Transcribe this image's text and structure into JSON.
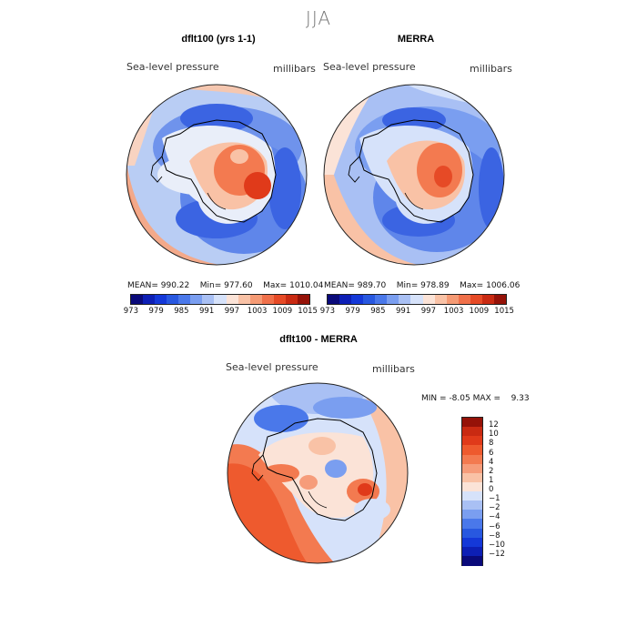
{
  "title": "JJA",
  "panels": [
    {
      "name": "dflt100 (yrs 1-1)",
      "variable": "Sea-level pressure",
      "units": "millibars",
      "stats": {
        "mean": "990.22",
        "min": "977.60",
        "max": "1010.04"
      }
    },
    {
      "name": "MERRA",
      "variable": "Sea-level pressure",
      "units": "millibars",
      "stats": {
        "mean": "989.70",
        "min": "978.89",
        "max": "1006.06"
      }
    }
  ],
  "diff_panel": {
    "name": "dflt100 - MERRA",
    "variable": "Sea-level pressure",
    "units": "millibars",
    "min_label": "MIN =",
    "min_value": "-8.05",
    "max_label": "MAX =",
    "max_value": "9.33"
  },
  "labels": {
    "mean": "MEAN=",
    "min": "Min=",
    "max": "Max="
  },
  "colorbar_abs": {
    "ticks": [
      "973",
      "979",
      "985",
      "991",
      "997",
      "1003",
      "1009",
      "1015"
    ],
    "colors": [
      "#0a0a7a",
      "#0d1fb5",
      "#1438d8",
      "#2858e0",
      "#4a78ea",
      "#7a9ef0",
      "#a9c0f4",
      "#d6e2fa",
      "#fbe3d7",
      "#f9c2a6",
      "#f59a74",
      "#f0704a",
      "#e64a26",
      "#c92a12",
      "#951208"
    ]
  },
  "colorbar_diff": {
    "ticks": [
      "12",
      "10",
      "8",
      "6",
      "4",
      "2",
      "1",
      "0",
      "−1",
      "−2",
      "−4",
      "−6",
      "−8",
      "−10",
      "−12"
    ],
    "colors": [
      "#951208",
      "#c92a12",
      "#e03a1a",
      "#ee5a2e",
      "#f37a50",
      "#f69c7a",
      "#f9c2a6",
      "#fbe3d7",
      "#d6e2fa",
      "#a9c0f4",
      "#7a9ef0",
      "#4a78ea",
      "#2858e0",
      "#1438d8",
      "#0d1fb5",
      "#0a0a7a"
    ]
  }
}
